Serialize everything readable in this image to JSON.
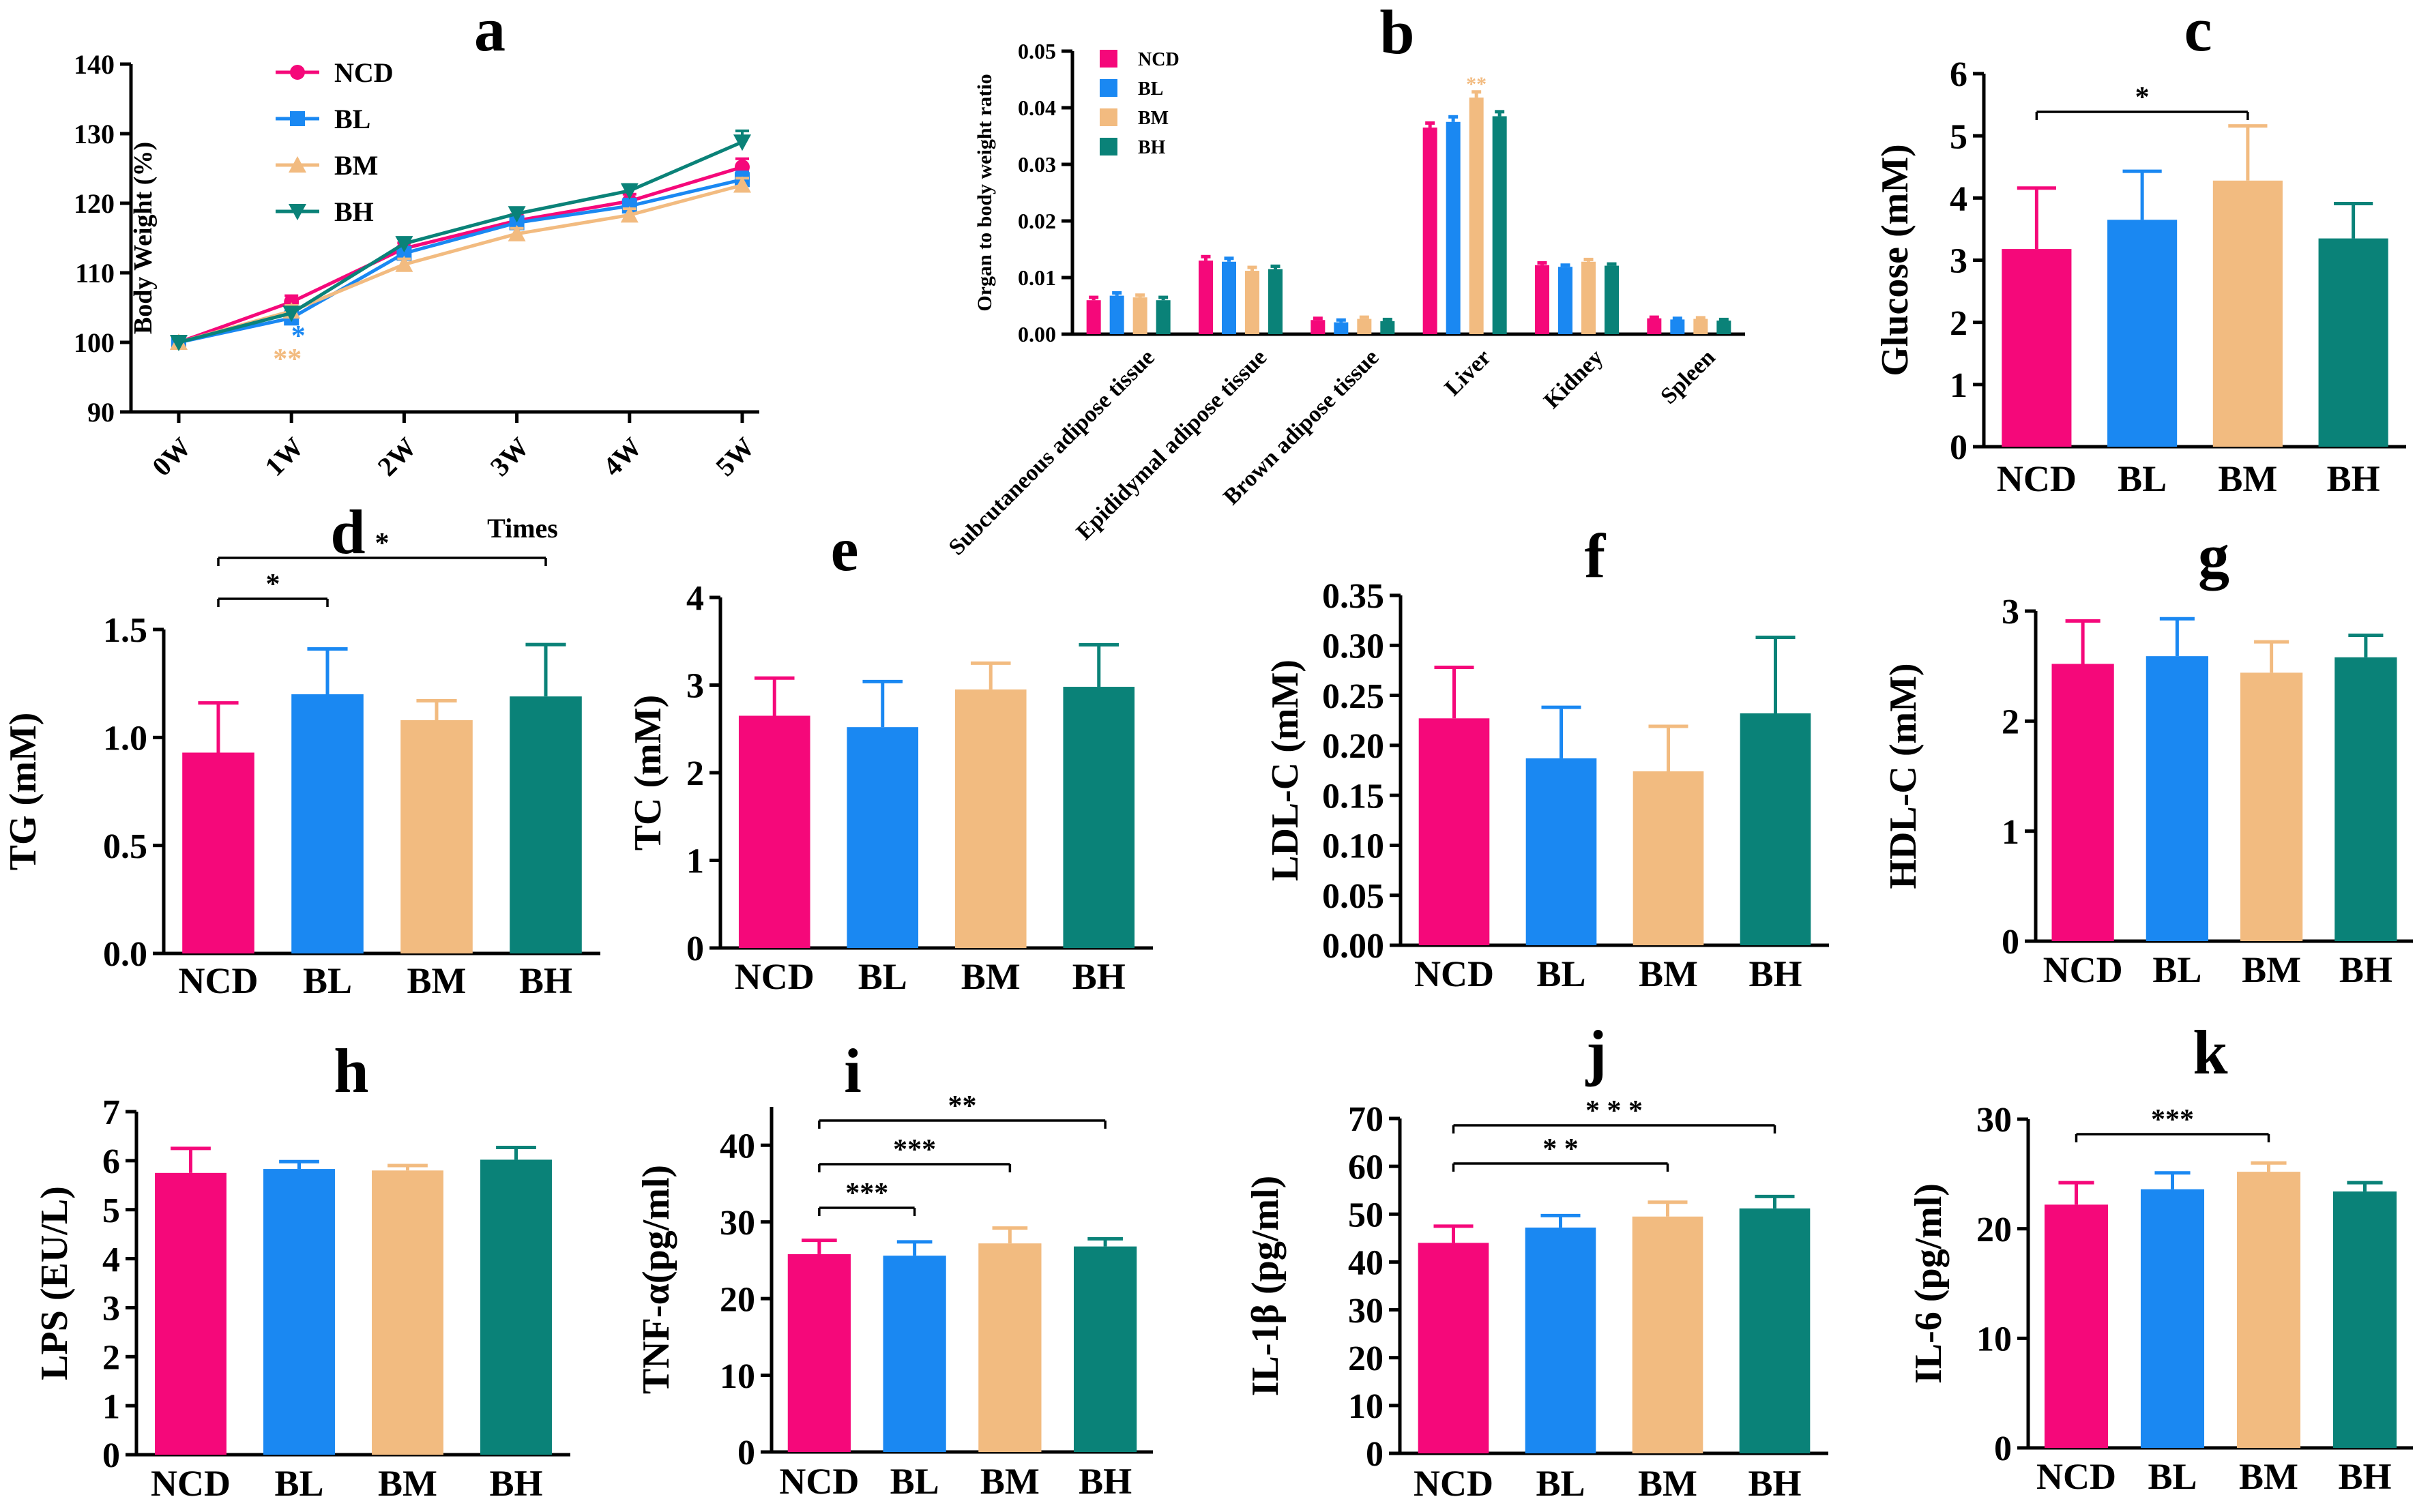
{
  "colors": {
    "NCD": "#f5087a",
    "BL": "#1a88f2",
    "BM": "#f2bb80",
    "BH": "#0a8278",
    "axis": "#000000"
  },
  "chart_data": [
    {
      "id": "a",
      "panel_label": "a",
      "type": "line",
      "xlabel": "Times",
      "ylabel": "Body Weight (%)",
      "categories": [
        "0W",
        "1W",
        "2W",
        "3W",
        "4W",
        "5W"
      ],
      "ylim": [
        90,
        140
      ],
      "yticks": [
        90,
        100,
        110,
        120,
        130,
        140
      ],
      "legend": "top-left",
      "series": [
        {
          "name": "NCD",
          "values": [
            100,
            105.8,
            113.5,
            117.5,
            120.3,
            125.2
          ],
          "errors": [
            0.5,
            0.9,
            0.8,
            0.9,
            1.0,
            1.2
          ],
          "marker": "circle"
        },
        {
          "name": "BL",
          "values": [
            100,
            103.5,
            112.8,
            117.2,
            119.6,
            123.4
          ],
          "errors": [
            0.5,
            0.9,
            0.8,
            0.8,
            1.0,
            1.1
          ],
          "marker": "square"
        },
        {
          "name": "BM",
          "values": [
            100,
            104.5,
            111.2,
            115.6,
            118.3,
            122.6
          ],
          "errors": [
            0.5,
            0.8,
            0.8,
            0.8,
            0.9,
            1.0
          ],
          "marker": "triangle-up"
        },
        {
          "name": "BH",
          "values": [
            100,
            104.2,
            114.2,
            118.5,
            121.8,
            128.8
          ],
          "errors": [
            0.5,
            0.8,
            0.7,
            0.8,
            0.9,
            1.6
          ],
          "marker": "triangle-down"
        }
      ],
      "annotations": [
        {
          "text": "*",
          "category": "1W",
          "color": "#1a88f2"
        },
        {
          "text": "**",
          "category": "1W",
          "color": "#f2bb80"
        }
      ]
    },
    {
      "id": "b",
      "panel_label": "b",
      "type": "bar",
      "xlabel": "",
      "ylabel": "Organ to body weight ratio",
      "categories": [
        "Subcutaneous adipose tissue",
        "Epididymal adipose tissue",
        "Brown adipose tissue",
        "Liver",
        "Kidney",
        "Spleen"
      ],
      "ylim": [
        0,
        0.05
      ],
      "yticks": [
        "0.00",
        "0.01",
        "0.02",
        "0.03",
        "0.04",
        "0.05"
      ],
      "legend": "top-left",
      "series": [
        {
          "name": "NCD",
          "values": [
            0.006,
            0.013,
            0.0025,
            0.0365,
            0.0122,
            0.0028
          ],
          "errors": [
            0.0005,
            0.0007,
            0.0003,
            0.0008,
            0.0004,
            0.0002
          ]
        },
        {
          "name": "BL",
          "values": [
            0.0068,
            0.0128,
            0.0021,
            0.0375,
            0.0119,
            0.0026
          ],
          "errors": [
            0.0005,
            0.0006,
            0.0004,
            0.0009,
            0.0003,
            0.0002
          ]
        },
        {
          "name": "BM",
          "values": [
            0.0065,
            0.0112,
            0.0027,
            0.0418,
            0.0128,
            0.0027
          ],
          "errors": [
            0.0004,
            0.0006,
            0.0003,
            0.001,
            0.0004,
            0.0002
          ]
        },
        {
          "name": "BH",
          "values": [
            0.006,
            0.0115,
            0.0023,
            0.0385,
            0.0121,
            0.0024
          ],
          "errors": [
            0.0005,
            0.0005,
            0.0003,
            0.0008,
            0.0003,
            0.0002
          ]
        }
      ],
      "annotations": [
        {
          "text": "**",
          "category": "Liver",
          "series": "BM",
          "color": "#f2bb80"
        }
      ]
    },
    {
      "id": "c",
      "panel_label": "c",
      "type": "bar",
      "ylabel": "Glucose (mM)",
      "categories": [
        "NCD",
        "BL",
        "BM",
        "BH"
      ],
      "ylim": [
        0,
        6
      ],
      "yticks": [
        "0",
        "1",
        "2",
        "3",
        "4",
        "5",
        "6"
      ],
      "values": [
        3.18,
        3.65,
        4.28,
        3.35
      ],
      "errors": [
        0.98,
        0.78,
        0.88,
        0.56
      ],
      "significance": [
        {
          "from": "NCD",
          "to": "BM",
          "text": "*"
        }
      ]
    },
    {
      "id": "d",
      "panel_label": "d",
      "type": "bar",
      "ylabel": "TG (mM)",
      "categories": [
        "NCD",
        "BL",
        "BM",
        "BH"
      ],
      "ylim": [
        0,
        1.5
      ],
      "yticks": [
        "0.0",
        "0.5",
        "1.0",
        "1.5"
      ],
      "values": [
        0.93,
        1.2,
        1.08,
        1.19
      ],
      "errors": [
        0.23,
        0.21,
        0.09,
        0.24
      ],
      "significance": [
        {
          "from": "NCD",
          "to": "BL",
          "text": "*"
        },
        {
          "from": "NCD",
          "to": "BH",
          "text": "*"
        }
      ]
    },
    {
      "id": "e",
      "panel_label": "e",
      "type": "bar",
      "ylabel": "TC (mM)",
      "categories": [
        "NCD",
        "BL",
        "BM",
        "BH"
      ],
      "ylim": [
        0,
        4
      ],
      "yticks": [
        "0",
        "1",
        "2",
        "3",
        "4"
      ],
      "values": [
        2.65,
        2.52,
        2.95,
        2.98
      ],
      "errors": [
        0.43,
        0.52,
        0.3,
        0.48
      ],
      "significance": []
    },
    {
      "id": "f",
      "panel_label": "f",
      "type": "bar",
      "ylabel": "LDL-C (mM)",
      "categories": [
        "NCD",
        "BL",
        "BM",
        "BH"
      ],
      "ylim": [
        0,
        0.35
      ],
      "yticks": [
        "0.00",
        "0.05",
        "0.10",
        "0.15",
        "0.20",
        "0.25",
        "0.30",
        "0.35"
      ],
      "values": [
        0.227,
        0.187,
        0.174,
        0.232
      ],
      "errors": [
        0.051,
        0.051,
        0.045,
        0.076
      ],
      "significance": []
    },
    {
      "id": "g",
      "panel_label": "g",
      "type": "bar",
      "ylabel": "HDL-C (mM)",
      "categories": [
        "NCD",
        "BL",
        "BM",
        "BH"
      ],
      "ylim": [
        0,
        3
      ],
      "yticks": [
        "0",
        "1",
        "2",
        "3"
      ],
      "values": [
        2.52,
        2.59,
        2.44,
        2.58
      ],
      "errors": [
        0.39,
        0.34,
        0.28,
        0.2
      ],
      "significance": []
    },
    {
      "id": "h",
      "panel_label": "h",
      "type": "bar",
      "ylabel": "LPS (EU/L)",
      "categories": [
        "NCD",
        "BL",
        "BM",
        "BH"
      ],
      "ylim": [
        0,
        7
      ],
      "yticks": [
        "0",
        "1",
        "2",
        "3",
        "4",
        "5",
        "6",
        "7"
      ],
      "values": [
        5.75,
        5.83,
        5.8,
        6.02
      ],
      "errors": [
        0.5,
        0.15,
        0.1,
        0.25
      ],
      "significance": []
    },
    {
      "id": "i",
      "panel_label": "i",
      "type": "bar",
      "ylabel": "TNF-α(pg/ml)",
      "categories": [
        "NCD",
        "BL",
        "BM",
        "BH"
      ],
      "ylim": [
        0,
        45
      ],
      "yticks": [
        "0",
        "10",
        "20",
        "30",
        "40"
      ],
      "values": [
        25.8,
        25.6,
        27.2,
        26.8
      ],
      "errors": [
        1.8,
        1.8,
        2.0,
        1.0
      ],
      "significance": [
        {
          "from": "NCD",
          "to": "BL",
          "text": "***"
        },
        {
          "from": "NCD",
          "to": "BM",
          "text": "***"
        },
        {
          "from": "NCD",
          "to": "BH",
          "text": "**"
        }
      ]
    },
    {
      "id": "j",
      "panel_label": "j",
      "type": "bar",
      "ylabel": "IL-1β (pg/ml)",
      "categories": [
        "NCD",
        "BL",
        "BM",
        "BH"
      ],
      "ylim": [
        0,
        70
      ],
      "yticks": [
        "0",
        "10",
        "20",
        "30",
        "40",
        "50",
        "60",
        "70"
      ],
      "values": [
        44.0,
        47.2,
        49.5,
        51.2
      ],
      "errors": [
        3.5,
        2.5,
        3.0,
        2.5
      ],
      "significance": [
        {
          "from": "NCD",
          "to": "BM",
          "text": "* *"
        },
        {
          "from": "NCD",
          "to": "BH",
          "text": "* * *"
        }
      ]
    },
    {
      "id": "k",
      "panel_label": "k",
      "type": "bar",
      "ylabel": "IL-6 (pg/ml)",
      "categories": [
        "NCD",
        "BL",
        "BM",
        "BH"
      ],
      "ylim": [
        0,
        30
      ],
      "yticks": [
        "0",
        "10",
        "20",
        "30"
      ],
      "values": [
        22.2,
        23.6,
        25.2,
        23.4
      ],
      "errors": [
        2.0,
        1.5,
        0.8,
        0.8
      ],
      "significance": [
        {
          "from": "NCD",
          "to": "BM",
          "text": "***"
        }
      ]
    }
  ]
}
